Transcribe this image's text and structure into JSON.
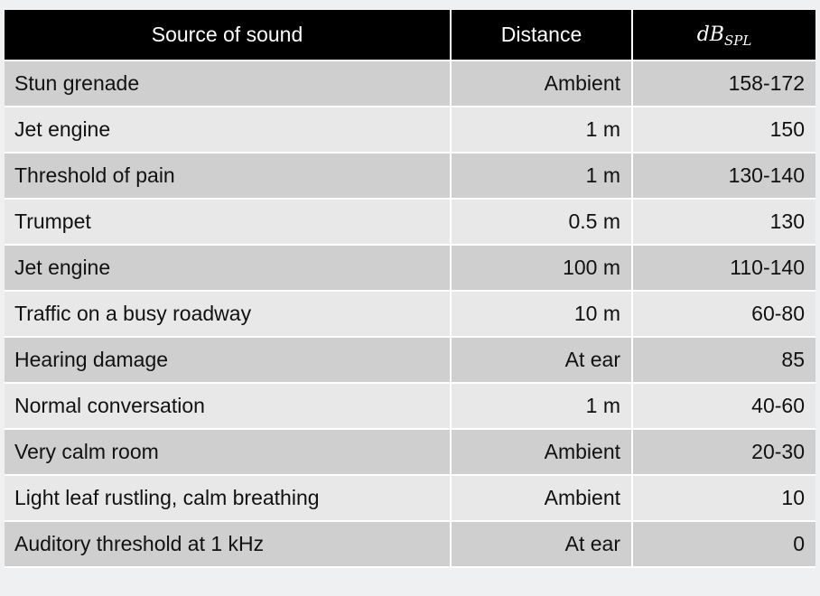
{
  "table": {
    "headers": {
      "source": "Source of sound",
      "distance": "Distance",
      "db_main": "dB",
      "db_sub": "SPL"
    },
    "rows": [
      {
        "source": "Stun grenade",
        "distance": "Ambient",
        "db": "158-172"
      },
      {
        "source": "Jet engine",
        "distance": "1 m",
        "db": "150"
      },
      {
        "source": "Threshold of pain",
        "distance": "1 m",
        "db": "130-140"
      },
      {
        "source": "Trumpet",
        "distance": "0.5 m",
        "db": "130"
      },
      {
        "source": "Jet engine",
        "distance": "100 m",
        "db": "110-140"
      },
      {
        "source": "Traffic on a busy roadway",
        "distance": "10 m",
        "db": "60-80"
      },
      {
        "source": "Hearing damage",
        "distance": "At ear",
        "db": "85"
      },
      {
        "source": "Normal conversation",
        "distance": "1 m",
        "db": "40-60"
      },
      {
        "source": "Very calm room",
        "distance": "Ambient",
        "db": "20-30"
      },
      {
        "source": "Light leaf rustling, calm breathing",
        "distance": "Ambient",
        "db": "10"
      },
      {
        "source": "Auditory threshold at 1 kHz",
        "distance": "At ear",
        "db": "0"
      }
    ]
  },
  "colors": {
    "header_bg": "#000000",
    "header_text": "#ffffff",
    "row_dark": "#cfcfcf",
    "row_light": "#e8e8e8",
    "page_bg": "#eef0f2"
  }
}
